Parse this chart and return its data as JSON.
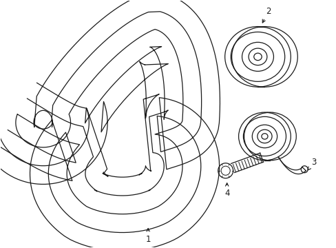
{
  "background_color": "#ffffff",
  "line_color": "#1a1a1a",
  "line_width": 0.9,
  "label_fontsize": 8.5,
  "fig_width": 4.89,
  "fig_height": 3.6,
  "dpi": 100,
  "n_ribs": 5,
  "rib_spread": 0.055
}
